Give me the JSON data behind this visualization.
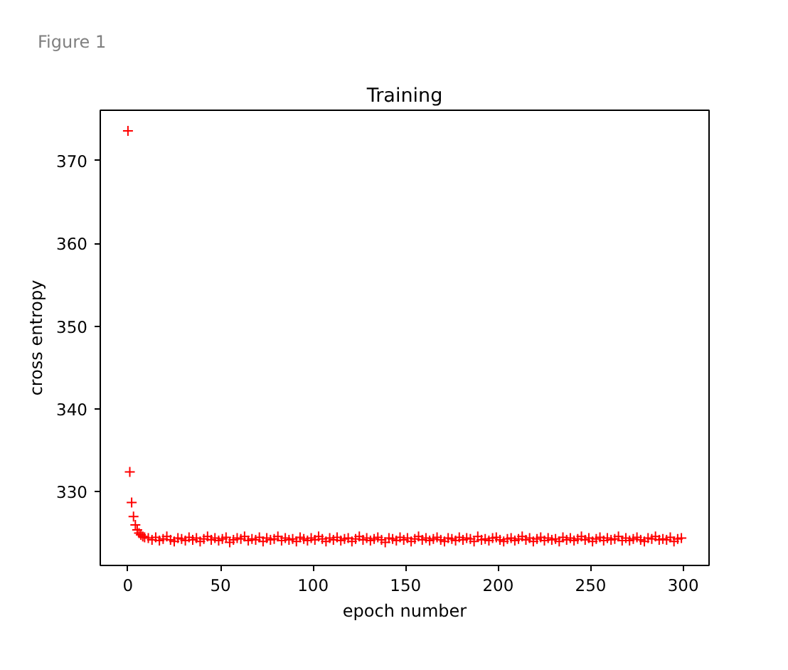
{
  "chart_data": {
    "type": "scatter",
    "title": "Training",
    "xlabel": "epoch number",
    "ylabel": "cross entropy",
    "annotations": [
      "Figure 1"
    ],
    "x": [
      0,
      1,
      2,
      3,
      4,
      5,
      6,
      7,
      8,
      9,
      11,
      13,
      15,
      17,
      19,
      21,
      23,
      25,
      27,
      29,
      31,
      33,
      35,
      37,
      39,
      41,
      43,
      45,
      47,
      49,
      51,
      53,
      55,
      57,
      59,
      61,
      63,
      65,
      67,
      69,
      71,
      73,
      75,
      77,
      79,
      81,
      83,
      85,
      87,
      89,
      91,
      93,
      95,
      97,
      99,
      101,
      103,
      105,
      107,
      109,
      111,
      113,
      115,
      117,
      119,
      121,
      123,
      125,
      127,
      129,
      131,
      133,
      135,
      137,
      139,
      141,
      143,
      145,
      147,
      149,
      151,
      153,
      155,
      157,
      159,
      161,
      163,
      165,
      167,
      169,
      171,
      173,
      175,
      177,
      179,
      181,
      183,
      185,
      187,
      189,
      191,
      193,
      195,
      197,
      199,
      201,
      203,
      205,
      207,
      209,
      211,
      213,
      215,
      217,
      219,
      221,
      223,
      225,
      227,
      229,
      231,
      233,
      235,
      237,
      239,
      241,
      243,
      245,
      247,
      249,
      251,
      253,
      255,
      257,
      259,
      261,
      263,
      265,
      267,
      269,
      271,
      273,
      275,
      277,
      279,
      281,
      283,
      285,
      287,
      289,
      291,
      293,
      295,
      297,
      299
    ],
    "series": [
      {
        "color": "#ff0000",
        "values": [
          373.6,
          332.4,
          328.7,
          327.0,
          326.0,
          325.4,
          325.0,
          324.8,
          324.6,
          324.5,
          324.4,
          324.2,
          324.5,
          324.1,
          324.3,
          324.6,
          324.2,
          324.0,
          324.4,
          324.3,
          324.1,
          324.5,
          324.2,
          324.4,
          324.0,
          324.3,
          324.6,
          324.2,
          324.4,
          324.1,
          324.3,
          324.5,
          323.9,
          324.2,
          324.4,
          324.3,
          324.6,
          324.1,
          324.3,
          324.2,
          324.5,
          324.0,
          324.4,
          324.2,
          324.3,
          324.6,
          324.1,
          324.4,
          324.2,
          324.3,
          324.0,
          324.5,
          324.3,
          324.1,
          324.4,
          324.2,
          324.6,
          324.3,
          324.0,
          324.4,
          324.2,
          324.5,
          324.1,
          324.3,
          324.4,
          324.0,
          324.3,
          324.6,
          324.2,
          324.4,
          324.1,
          324.3,
          324.5,
          324.2,
          323.9,
          324.4,
          324.3,
          324.1,
          324.5,
          324.2,
          324.4,
          324.0,
          324.3,
          324.6,
          324.2,
          324.4,
          324.1,
          324.3,
          324.5,
          324.2,
          324.0,
          324.4,
          324.3,
          324.1,
          324.5,
          324.2,
          324.4,
          324.3,
          324.0,
          324.6,
          324.2,
          324.3,
          324.1,
          324.4,
          324.5,
          324.2,
          324.0,
          324.3,
          324.4,
          324.1,
          324.3,
          324.6,
          324.2,
          324.4,
          324.0,
          324.3,
          324.5,
          324.1,
          324.4,
          324.2,
          324.3,
          324.0,
          324.5,
          324.2,
          324.4,
          324.1,
          324.3,
          324.6,
          324.2,
          324.4,
          324.0,
          324.3,
          324.5,
          324.1,
          324.4,
          324.2,
          324.3,
          324.6,
          324.1,
          324.4,
          324.1,
          324.3,
          324.5,
          324.2,
          324.0,
          324.4,
          324.3,
          324.6,
          324.2,
          324.3,
          324.2,
          324.5,
          324.0,
          324.3,
          324.4
        ]
      }
    ],
    "xlim": [
      -14.95,
      313.95
    ],
    "ylim": [
      321.1,
      376.1
    ],
    "xticks": [
      0,
      50,
      100,
      150,
      200,
      250,
      300
    ],
    "yticks": [
      330,
      340,
      350,
      360,
      370
    ],
    "marker": "cross",
    "grid": false
  }
}
